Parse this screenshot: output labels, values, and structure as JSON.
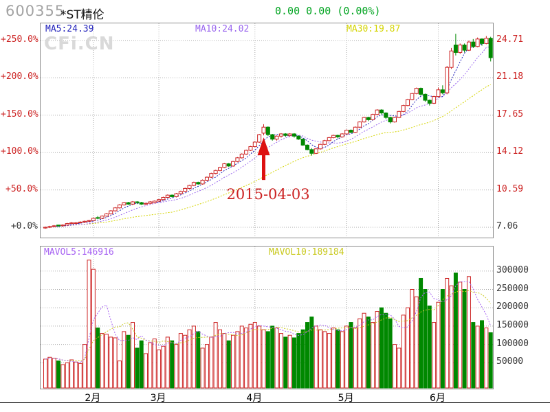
{
  "header": {
    "code": "600355",
    "name": "*ST精伦",
    "quote": "0.00 0.00 (0.00%)"
  },
  "watermark": "CFi.CN",
  "annotation": {
    "text": "2015-04-03",
    "candle_index": 50
  },
  "colors": {
    "up": "#cc2222",
    "down": "#008800",
    "grid": "#ababab",
    "border": "#8c8c8c",
    "ma5": "#2222bb",
    "ma10": "#9966ee",
    "ma30": "#d4d400",
    "mavol5": "#a661f2",
    "mavol10": "#c9c91e",
    "axis_red": "#cc2222",
    "axis_black": "#333333",
    "arrow": "#dd1111"
  },
  "chart_data": [
    {
      "type": "candlestick",
      "title": "600355 *ST精伦 daily price, percent scale vs base 7.06",
      "base_price": 7.06,
      "legend": {
        "ma5": {
          "label": "MA5:24.39"
        },
        "ma10": {
          "label": "MA10:24.02"
        },
        "ma30": {
          "label": "MA30:19.87"
        }
      },
      "left_axis_ticks": [
        {
          "label": "+250.0%",
          "pct": 250,
          "color": "#cc2222"
        },
        {
          "label": "+200.0%",
          "pct": 200,
          "color": "#cc2222"
        },
        {
          "label": "+150.0%",
          "pct": 150,
          "color": "#cc2222"
        },
        {
          "label": "+100.0%",
          "pct": 100,
          "color": "#cc2222"
        },
        {
          "label": "+50.0%",
          "pct": 50,
          "color": "#cc2222"
        },
        {
          "label": "+0.0%",
          "pct": 0,
          "color": "#333333"
        }
      ],
      "right_axis_ticks": [
        {
          "label": "24.71",
          "pct": 250,
          "color": "#cc2222"
        },
        {
          "label": "21.18",
          "pct": 200,
          "color": "#cc2222"
        },
        {
          "label": "17.65",
          "pct": 150,
          "color": "#cc2222"
        },
        {
          "label": "14.12",
          "pct": 100,
          "color": "#cc2222"
        },
        {
          "label": "10.59",
          "pct": 50,
          "color": "#cc2222"
        },
        {
          "label": "7.06",
          "pct": 0,
          "color": "#333333"
        }
      ],
      "months": [
        {
          "label": "2月",
          "index": 11
        },
        {
          "label": "3月",
          "index": 26
        },
        {
          "label": "4月",
          "index": 48
        },
        {
          "label": "5月",
          "index": 69
        },
        {
          "label": "6月",
          "index": 90
        }
      ],
      "candles_pct_ohlc": [
        [
          -1,
          1,
          -2,
          0
        ],
        [
          0,
          2,
          -1,
          1
        ],
        [
          1,
          3,
          0,
          2
        ],
        [
          3,
          3,
          0,
          2
        ],
        [
          2,
          4,
          1,
          3
        ],
        [
          3,
          6,
          2,
          5
        ],
        [
          5,
          7,
          4,
          6
        ],
        [
          6,
          7,
          4,
          6
        ],
        [
          6,
          8,
          5,
          7
        ],
        [
          7,
          9,
          6,
          8
        ],
        [
          8,
          10,
          7,
          9
        ],
        [
          9,
          13,
          8,
          12
        ],
        [
          13,
          15,
          11,
          12
        ],
        [
          12,
          16,
          11,
          15
        ],
        [
          15,
          19,
          14,
          18
        ],
        [
          18,
          23,
          17,
          22
        ],
        [
          22,
          27,
          21,
          26
        ],
        [
          26,
          31,
          25,
          30
        ],
        [
          30,
          34,
          29,
          33
        ],
        [
          33,
          34,
          30,
          31
        ],
        [
          31,
          35,
          30,
          34
        ],
        [
          34,
          35,
          31,
          33
        ],
        [
          33,
          34,
          30,
          31
        ],
        [
          31,
          33,
          30,
          32
        ],
        [
          32,
          35,
          31,
          34
        ],
        [
          33,
          36,
          32,
          35
        ],
        [
          35,
          38,
          34,
          37
        ],
        [
          37,
          41,
          36,
          40
        ],
        [
          40,
          44,
          39,
          43
        ],
        [
          43,
          44,
          40,
          41
        ],
        [
          41,
          46,
          40,
          45
        ],
        [
          45,
          49,
          44,
          48
        ],
        [
          48,
          53,
          47,
          52
        ],
        [
          52,
          57,
          51,
          56
        ],
        [
          56,
          61,
          55,
          60
        ],
        [
          60,
          61,
          57,
          58
        ],
        [
          58,
          64,
          57,
          63
        ],
        [
          63,
          68,
          62,
          67
        ],
        [
          67,
          73,
          66,
          72
        ],
        [
          72,
          77,
          71,
          76
        ],
        [
          76,
          81,
          75,
          80
        ],
        [
          80,
          86,
          79,
          85
        ],
        [
          85,
          86,
          81,
          82
        ],
        [
          82,
          89,
          81,
          88
        ],
        [
          88,
          94,
          87,
          93
        ],
        [
          93,
          99,
          92,
          98
        ],
        [
          98,
          104,
          97,
          103
        ],
        [
          103,
          109,
          102,
          108
        ],
        [
          108,
          115,
          107,
          114
        ],
        [
          114,
          125,
          113,
          124
        ],
        [
          126,
          138,
          123,
          134
        ],
        [
          134,
          135,
          122,
          124
        ],
        [
          124,
          125,
          116,
          118
        ],
        [
          118,
          123,
          116,
          122
        ],
        [
          122,
          126,
          120,
          125
        ],
        [
          125,
          126,
          121,
          123
        ],
        [
          123,
          126,
          121,
          125
        ],
        [
          125,
          126,
          120,
          122
        ],
        [
          122,
          123,
          117,
          118
        ],
        [
          118,
          119,
          109,
          110
        ],
        [
          110,
          111,
          103,
          104
        ],
        [
          104,
          106,
          96,
          99
        ],
        [
          99,
          106,
          98,
          105
        ],
        [
          105,
          112,
          104,
          111
        ],
        [
          111,
          117,
          110,
          116
        ],
        [
          116,
          121,
          115,
          120
        ],
        [
          120,
          124,
          119,
          123
        ],
        [
          123,
          124,
          119,
          121
        ],
        [
          121,
          126,
          120,
          125
        ],
        [
          125,
          131,
          124,
          130
        ],
        [
          130,
          131,
          126,
          127
        ],
        [
          127,
          135,
          126,
          134
        ],
        [
          134,
          142,
          133,
          141
        ],
        [
          141,
          148,
          140,
          147
        ],
        [
          147,
          148,
          142,
          144
        ],
        [
          144,
          152,
          143,
          151
        ],
        [
          151,
          158,
          150,
          157
        ],
        [
          157,
          158,
          151,
          153
        ],
        [
          153,
          154,
          145,
          147
        ],
        [
          147,
          148,
          139,
          141
        ],
        [
          141,
          148,
          140,
          147
        ],
        [
          147,
          156,
          146,
          155
        ],
        [
          155,
          164,
          154,
          163
        ],
        [
          163,
          172,
          162,
          171
        ],
        [
          171,
          180,
          170,
          179
        ],
        [
          179,
          187,
          178,
          186
        ],
        [
          186,
          187,
          176,
          178
        ],
        [
          178,
          179,
          168,
          170
        ],
        [
          170,
          171,
          163,
          166
        ],
        [
          166,
          176,
          165,
          175
        ],
        [
          175,
          187,
          174,
          184
        ],
        [
          184,
          190,
          178,
          180
        ],
        [
          180,
          216,
          178,
          214
        ],
        [
          214,
          240,
          212,
          236
        ],
        [
          244,
          259,
          230,
          234
        ],
        [
          234,
          246,
          232,
          244
        ],
        [
          244,
          246,
          234,
          237
        ],
        [
          237,
          250,
          236,
          248
        ],
        [
          248,
          252,
          240,
          242
        ],
        [
          242,
          254,
          241,
          252
        ],
        [
          252,
          253,
          243,
          246
        ],
        [
          246,
          256,
          245,
          253
        ],
        [
          253,
          255,
          222,
          227
        ]
      ]
    },
    {
      "type": "bar",
      "title": "volume with MAVOL5 / MAVOL10",
      "legend": {
        "mavol5": {
          "label": "MAVOL5:146916"
        },
        "mavol10": {
          "label": "MAVOL10:189184"
        }
      },
      "y_ticks": [
        {
          "label": "300000",
          "v": 300000
        },
        {
          "label": "250000",
          "v": 250000
        },
        {
          "label": "200000",
          "v": 200000
        },
        {
          "label": "150000",
          "v": 150000
        },
        {
          "label": "100000",
          "v": 100000
        },
        {
          "label": "50000",
          "v": 50000
        }
      ],
      "volumes": [
        60000,
        65000,
        62000,
        55000,
        45000,
        50000,
        58000,
        52000,
        48000,
        100000,
        330000,
        305000,
        145000,
        130000,
        128000,
        120000,
        118000,
        55000,
        135000,
        125000,
        160000,
        90000,
        110000,
        75000,
        105000,
        115000,
        85000,
        95000,
        120000,
        110000,
        100000,
        130000,
        125000,
        140000,
        150000,
        135000,
        90000,
        100000,
        120000,
        160000,
        140000,
        130000,
        110000,
        125000,
        135000,
        150000,
        145000,
        155000,
        160000,
        150000,
        140000,
        135000,
        150000,
        145000,
        130000,
        120000,
        125000,
        118000,
        130000,
        140000,
        160000,
        175000,
        150000,
        140000,
        135000,
        130000,
        145000,
        140000,
        135000,
        150000,
        160000,
        145000,
        170000,
        185000,
        175000,
        160000,
        190000,
        200000,
        185000,
        170000,
        100000,
        90000,
        180000,
        200000,
        250000,
        230000,
        280000,
        250000,
        205000,
        160000,
        215000,
        250000,
        280000,
        260000,
        295000,
        270000,
        250000,
        285000,
        160000,
        150000,
        165000,
        145000,
        132000
      ]
    }
  ]
}
